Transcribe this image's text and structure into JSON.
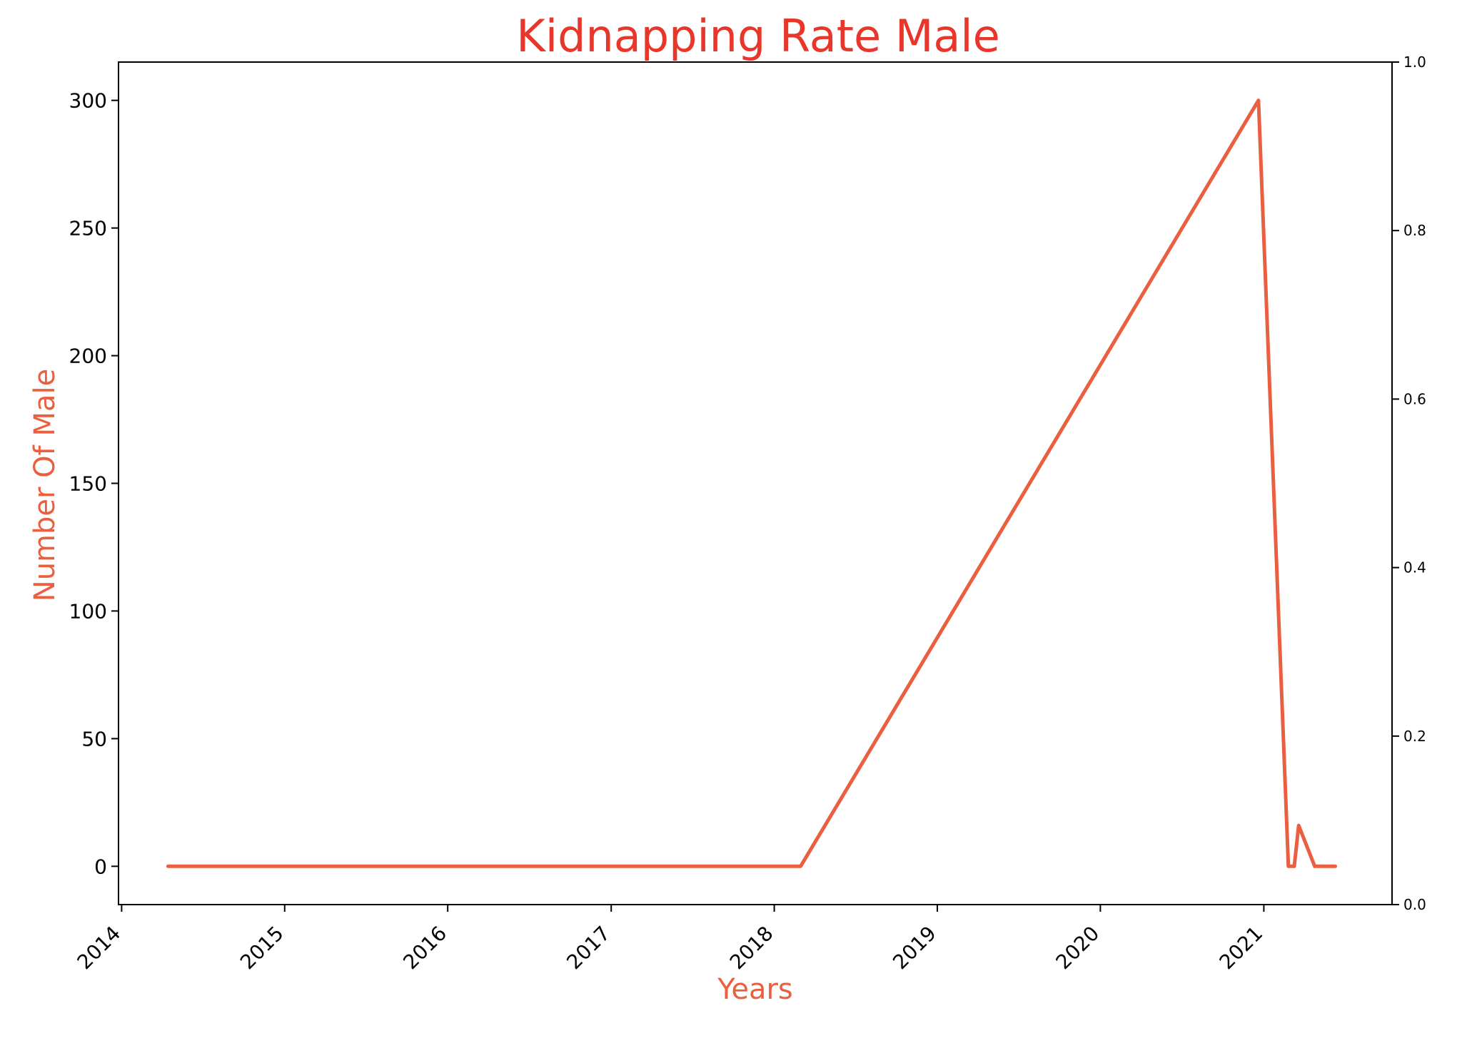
{
  "chart_data": {
    "type": "line",
    "title": "Kidnapping Rate Male",
    "xlabel": "Years",
    "ylabel": "Number Of Male",
    "colors": {
      "title": "#e8372a",
      "labels": "#ea5f3f",
      "line": "#ea5f3f"
    },
    "x_ticks": [
      "2014",
      "2015",
      "2016",
      "2017",
      "2018",
      "2019",
      "2020",
      "2021"
    ],
    "y_ticks": [
      "0",
      "50",
      "100",
      "150",
      "200",
      "250",
      "300"
    ],
    "y2_ticks": [
      "0.0",
      "0.2",
      "0.4",
      "0.6",
      "0.8",
      "1.0"
    ],
    "xlim": [
      "2013-12-25",
      "2021-10-15"
    ],
    "ylim": [
      -15,
      315
    ],
    "y2lim": [
      0,
      1
    ],
    "grid": false,
    "legend": "none",
    "series": [
      {
        "x": [
          "2014-04-15",
          "2018-03-01",
          "2020-12-20",
          "2021-02-25",
          "2021-03-10",
          "2021-03-20",
          "2021-04-25",
          "2021-06-10"
        ],
        "y": [
          0,
          0,
          300,
          0,
          0,
          16,
          0,
          0
        ]
      }
    ]
  }
}
